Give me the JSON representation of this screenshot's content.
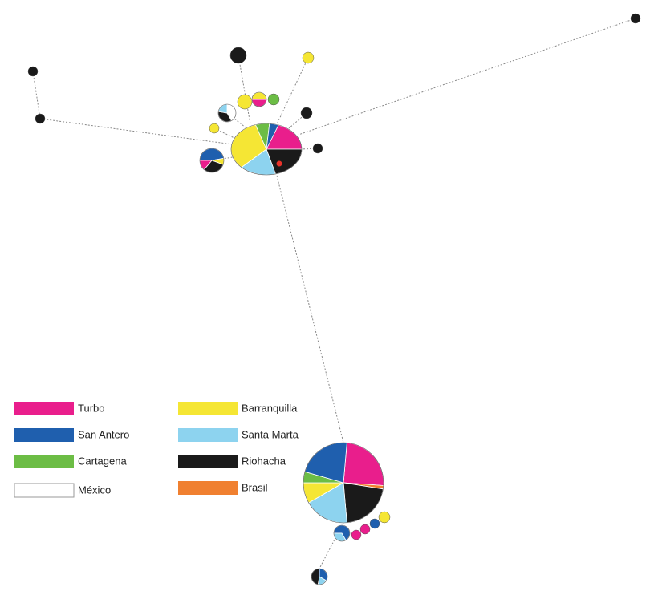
{
  "legend": [
    {
      "label": "Turbo",
      "color": "#e91e8c"
    },
    {
      "label": "San Antero",
      "color": "#1f5fae"
    },
    {
      "label": "Cartagena",
      "color": "#6cbd45"
    },
    {
      "label": "México",
      "color": "#ffffff"
    },
    {
      "label": "Barranquilla",
      "color": "#f5e634"
    },
    {
      "label": "Santa Marta",
      "color": "#8dd3ef"
    },
    {
      "label": "Riohacha",
      "color": "#1a1a1a"
    },
    {
      "label": "Brasil",
      "color": "#f08030"
    }
  ]
}
